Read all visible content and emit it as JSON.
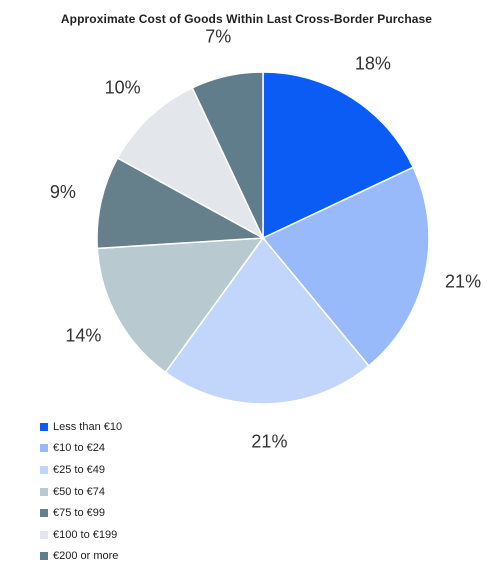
{
  "chart_data": {
    "type": "pie",
    "title": "Approximate Cost of Goods Within Last Cross-Border Purchase",
    "categories": [
      "Less than €10",
      "€10 to €24",
      "€25 to €49",
      "€50 to €74",
      "€75 to €99",
      "€100 to €199",
      "€200 or more"
    ],
    "values": [
      18,
      21,
      21,
      14,
      9,
      10,
      7
    ],
    "value_labels": [
      "18%",
      "21%",
      "21%",
      "14%",
      "9%",
      "10%",
      "7%"
    ],
    "colors": [
      "#0a5cf5",
      "#99bafa",
      "#c2d6fc",
      "#b9c9d0",
      "#657f8b",
      "#e3e7eb",
      "#607d8b"
    ],
    "unit": "%",
    "legend_position": "bottom-left"
  }
}
